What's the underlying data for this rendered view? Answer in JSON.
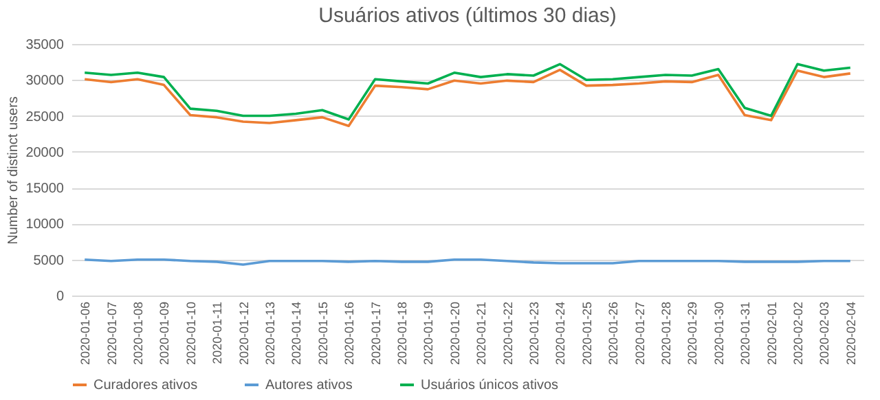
{
  "chart_data": {
    "type": "line",
    "title": "Usuários ativos (últimos 30 dias)",
    "ylabel": "Number of distinct users",
    "categories": [
      "2020-01-06",
      "2020-01-07",
      "2020-01-08",
      "2020-01-09",
      "2020-01-10",
      "2020-01-11",
      "2020-01-12",
      "2020-01-13",
      "2020-01-14",
      "2020-01-15",
      "2020-01-16",
      "2020-01-17",
      "2020-01-18",
      "2020-01-19",
      "2020-01-20",
      "2020-01-21",
      "2020-01-22",
      "2020-01-23",
      "2020-01-24",
      "2020-01-25",
      "2020-01-26",
      "2020-01-27",
      "2020-01-28",
      "2020-01-29",
      "2020-01-30",
      "2020-01-31",
      "2020-02-01",
      "2020-02-02",
      "2020-02-03",
      "2020-02-04"
    ],
    "series": [
      {
        "name": "Curadores ativos",
        "color": "#ed7d31",
        "values": [
          30100,
          29700,
          30100,
          29300,
          25100,
          24800,
          24200,
          24000,
          24400,
          24800,
          23600,
          29200,
          29000,
          28700,
          29900,
          29500,
          29900,
          29700,
          31400,
          29200,
          29300,
          29500,
          29800,
          29700,
          30700,
          25100,
          24400,
          31300,
          30400,
          30900
        ]
      },
      {
        "name": "Autores ativos",
        "color": "#5b9bd5",
        "values": [
          5000,
          4800,
          5000,
          5000,
          4800,
          4700,
          4300,
          4800,
          4800,
          4800,
          4700,
          4800,
          4700,
          4700,
          5000,
          5000,
          4800,
          4600,
          4500,
          4500,
          4500,
          4800,
          4800,
          4800,
          4800,
          4700,
          4700,
          4700,
          4800,
          4800
        ]
      },
      {
        "name": "Usuários únicos ativos",
        "color": "#00b050",
        "values": [
          31000,
          30700,
          31000,
          30400,
          26000,
          25700,
          25000,
          25000,
          25300,
          25800,
          24500,
          30100,
          29800,
          29500,
          31000,
          30400,
          30800,
          30600,
          32200,
          30000,
          30100,
          30400,
          30700,
          30600,
          31500,
          26100,
          25000,
          32200,
          31300,
          31700
        ]
      }
    ],
    "ylim": [
      0,
      35000
    ],
    "yticks": [
      0,
      5000,
      10000,
      15000,
      20000,
      25000,
      30000,
      35000
    ],
    "grid": "y",
    "legend": "bottom"
  }
}
